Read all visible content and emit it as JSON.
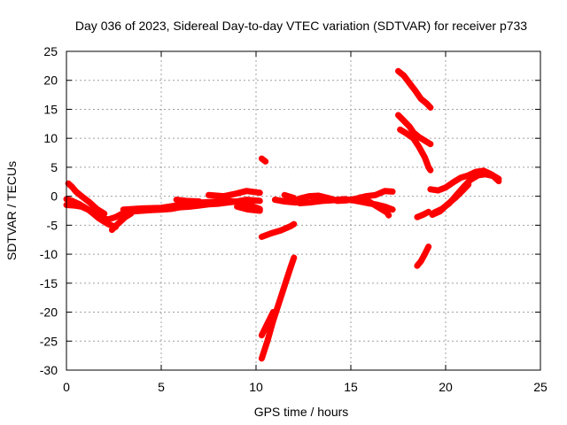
{
  "chart_data": {
    "type": "scatter",
    "title": "Day 036 of 2023, Sidereal Day-to-day VTEC variation (SDTVAR) for receiver p733",
    "xlabel": "GPS time / hours",
    "ylabel": "SDTVAR / TECUs",
    "xlim": [
      0,
      25
    ],
    "ylim": [
      -30,
      25
    ],
    "xticks": [
      0,
      5,
      10,
      15,
      20,
      25
    ],
    "yticks": [
      25,
      20,
      15,
      10,
      5,
      0,
      -5,
      -10,
      -15,
      -20,
      -25,
      -30
    ],
    "grid": true,
    "color": "#ff0000",
    "series": [
      {
        "values": [
          [
            0.0,
            -0.5
          ],
          [
            0.3,
            -0.8
          ],
          [
            0.7,
            -1.4
          ],
          [
            1.1,
            -2.2
          ],
          [
            1.5,
            -3.2
          ],
          [
            1.9,
            -3.8
          ],
          [
            2.2,
            -4.0
          ],
          [
            2.6,
            -3.6
          ],
          [
            3.0,
            -2.9
          ],
          [
            3.5,
            -2.6
          ],
          [
            4.0,
            -2.5
          ],
          [
            4.5,
            -2.4
          ],
          [
            5.0,
            -2.3
          ],
          [
            5.5,
            -2.2
          ],
          [
            6.0,
            -1.9
          ],
          [
            6.5,
            -1.8
          ],
          [
            7.0,
            -1.6
          ],
          [
            7.5,
            -1.4
          ],
          [
            8.0,
            -1.3
          ],
          [
            8.5,
            -1.1
          ],
          [
            9.0,
            -0.9
          ],
          [
            9.5,
            -0.6
          ],
          [
            10.2,
            -0.8
          ]
        ]
      },
      {
        "values": [
          [
            0.1,
            2.2
          ],
          [
            0.3,
            1.6
          ],
          [
            0.5,
            0.8
          ],
          [
            0.8,
            0.0
          ],
          [
            1.2,
            -1.0
          ],
          [
            1.6,
            -2.2
          ],
          [
            2.0,
            -3.0
          ]
        ]
      },
      {
        "values": [
          [
            0.0,
            -1.5
          ],
          [
            0.4,
            -1.6
          ],
          [
            0.8,
            -1.8
          ],
          [
            1.2,
            -2.4
          ],
          [
            1.7,
            -3.8
          ],
          [
            2.2,
            -4.8
          ],
          [
            2.6,
            -5.3
          ]
        ]
      },
      {
        "values": [
          [
            2.4,
            -5.8
          ],
          [
            2.7,
            -4.8
          ],
          [
            3.1,
            -3.6
          ],
          [
            3.4,
            -3.0
          ]
        ]
      },
      {
        "values": [
          [
            3.0,
            -2.3
          ],
          [
            4.0,
            -2.1
          ],
          [
            5.0,
            -2.0
          ],
          [
            5.8,
            -1.6
          ],
          [
            6.5,
            -1.2
          ],
          [
            7.5,
            -1.0
          ],
          [
            8.5,
            -0.8
          ],
          [
            9.2,
            -1.0
          ],
          [
            10.2,
            -2.2
          ]
        ]
      },
      {
        "values": [
          [
            5.8,
            -0.6
          ],
          [
            6.3,
            -0.8
          ],
          [
            7.0,
            -0.9
          ]
        ]
      },
      {
        "values": [
          [
            7.5,
            0.2
          ],
          [
            8.3,
            0.0
          ],
          [
            9.0,
            0.5
          ],
          [
            9.5,
            0.9
          ],
          [
            10.2,
            0.6
          ]
        ]
      },
      {
        "values": [
          [
            9.0,
            -1.8
          ],
          [
            9.6,
            -2.3
          ],
          [
            10.2,
            -2.5
          ]
        ]
      },
      {
        "values": [
          [
            10.3,
            6.5
          ],
          [
            10.5,
            6.0
          ]
        ]
      },
      {
        "values": [
          [
            10.3,
            -7.0
          ],
          [
            10.8,
            -6.4
          ],
          [
            11.3,
            -5.9
          ],
          [
            11.8,
            -5.2
          ],
          [
            12.0,
            -4.8
          ]
        ]
      },
      {
        "values": [
          [
            10.3,
            -28.0
          ],
          [
            10.6,
            -25.0
          ],
          [
            10.9,
            -21.5
          ],
          [
            11.2,
            -18.5
          ],
          [
            11.5,
            -15.5
          ],
          [
            11.8,
            -12.5
          ],
          [
            12.0,
            -10.6
          ]
        ]
      },
      {
        "values": [
          [
            10.3,
            -24.0
          ],
          [
            10.6,
            -22.0
          ],
          [
            10.9,
            -20.0
          ]
        ]
      },
      {
        "values": [
          [
            11.0,
            -0.6
          ],
          [
            11.5,
            -0.9
          ],
          [
            12.1,
            -1.1
          ]
        ]
      },
      {
        "values": [
          [
            11.5,
            0.2
          ],
          [
            12.0,
            -0.3
          ]
        ]
      },
      {
        "values": [
          [
            12.3,
            -0.4
          ],
          [
            12.8,
            0.0
          ],
          [
            13.3,
            0.1
          ],
          [
            13.8,
            -0.3
          ],
          [
            14.3,
            -0.8
          ],
          [
            14.8,
            -0.7
          ],
          [
            15.3,
            -0.4
          ],
          [
            15.8,
            0.0
          ],
          [
            16.3,
            0.2
          ],
          [
            16.8,
            0.9
          ],
          [
            17.2,
            0.8
          ]
        ]
      },
      {
        "values": [
          [
            12.3,
            -1.2
          ],
          [
            12.8,
            -1.1
          ],
          [
            13.5,
            -0.8
          ],
          [
            14.0,
            -0.7
          ],
          [
            14.7,
            -0.5
          ],
          [
            15.3,
            -0.8
          ],
          [
            15.9,
            -1.2
          ],
          [
            16.3,
            -1.4
          ],
          [
            16.8,
            -1.8
          ],
          [
            17.2,
            -2.3
          ]
        ]
      },
      {
        "values": [
          [
            15.5,
            -0.2
          ],
          [
            16.0,
            -1.0
          ],
          [
            16.5,
            -2.0
          ],
          [
            16.9,
            -2.8
          ],
          [
            17.0,
            -3.3
          ]
        ]
      },
      {
        "values": [
          [
            17.5,
            21.6
          ],
          [
            17.8,
            20.8
          ],
          [
            18.1,
            19.5
          ],
          [
            18.4,
            18.2
          ],
          [
            18.7,
            16.8
          ],
          [
            19.0,
            16.0
          ],
          [
            19.2,
            15.3
          ]
        ]
      },
      {
        "values": [
          [
            17.5,
            14.0
          ],
          [
            17.8,
            13.0
          ],
          [
            18.1,
            12.0
          ],
          [
            18.3,
            11.0
          ],
          [
            18.6,
            10.2
          ],
          [
            19.0,
            9.4
          ],
          [
            19.2,
            9.0
          ]
        ]
      },
      {
        "values": [
          [
            17.6,
            11.5
          ],
          [
            17.9,
            10.9
          ],
          [
            18.3,
            10.0
          ],
          [
            18.6,
            8.5
          ],
          [
            18.9,
            6.7
          ],
          [
            19.1,
            5.0
          ],
          [
            19.2,
            4.5
          ]
        ]
      },
      {
        "values": [
          [
            18.5,
            -12.0
          ],
          [
            18.7,
            -11.2
          ],
          [
            18.9,
            -10.0
          ],
          [
            19.1,
            -8.7
          ]
        ]
      },
      {
        "values": [
          [
            18.5,
            -3.6
          ],
          [
            18.8,
            -3.2
          ],
          [
            19.1,
            -2.7
          ]
        ]
      },
      {
        "values": [
          [
            19.2,
            1.2
          ],
          [
            19.6,
            1.0
          ],
          [
            20.0,
            1.5
          ],
          [
            20.4,
            2.4
          ],
          [
            20.8,
            3.2
          ],
          [
            21.2,
            3.6
          ],
          [
            21.6,
            4.2
          ],
          [
            22.0,
            4.4
          ],
          [
            22.4,
            3.8
          ],
          [
            22.8,
            3.0
          ]
        ]
      },
      {
        "values": [
          [
            19.4,
            -2.8
          ],
          [
            19.8,
            -2.2
          ],
          [
            20.2,
            -1.2
          ],
          [
            20.6,
            0.3
          ],
          [
            21.0,
            1.8
          ],
          [
            21.3,
            2.8
          ],
          [
            21.7,
            3.6
          ],
          [
            22.1,
            3.8
          ],
          [
            22.5,
            3.5
          ],
          [
            22.8,
            2.6
          ]
        ]
      },
      {
        "values": [
          [
            19.3,
            -3.2
          ],
          [
            19.7,
            -2.6
          ],
          [
            20.1,
            -1.4
          ],
          [
            20.5,
            -0.3
          ],
          [
            20.9,
            1.0
          ],
          [
            21.2,
            2.0
          ]
        ]
      }
    ]
  }
}
